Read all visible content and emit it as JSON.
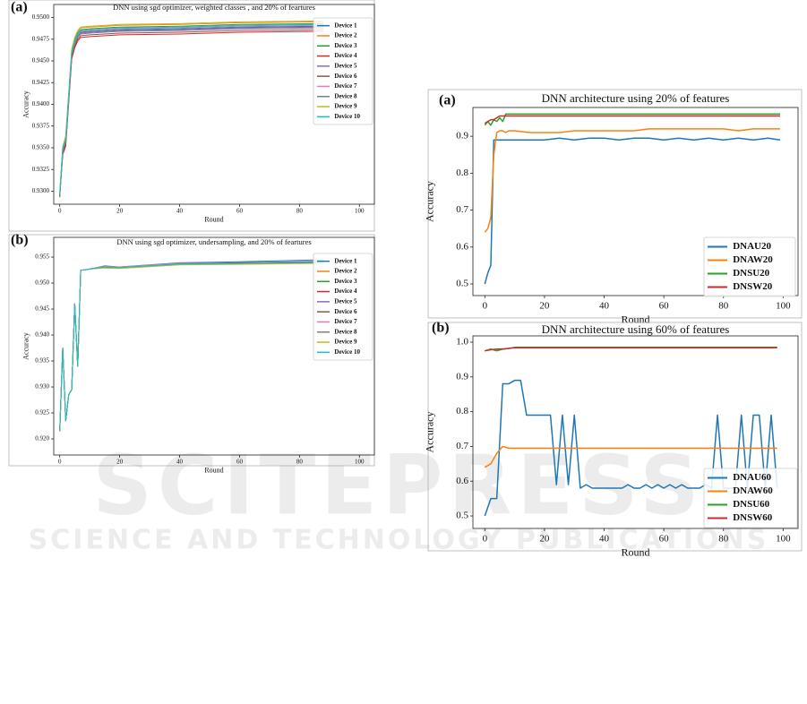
{
  "watermark": {
    "title": "SCITEPRESS",
    "subtitle": "SCIENCE AND TECHNOLOGY PUBLICATIONS"
  },
  "chart_data": [
    {
      "type": "line",
      "panel": "(a)",
      "title": "DNN using sgd optimizer, weighted classes , and 20% of feartures",
      "xlabel": "Round",
      "ylabel": "Accuracy",
      "x": [
        0,
        1,
        2,
        3,
        4,
        5,
        6,
        7,
        10,
        20,
        40,
        60,
        88
      ],
      "xlim": [
        -2,
        105
      ],
      "xticks": [
        0,
        20,
        40,
        60,
        80,
        100
      ],
      "ylim": [
        0.9285,
        0.9515
      ],
      "yticks": [
        {
          "value": 0.93,
          "label": "0.9300"
        },
        0.9325,
        {
          "value": 0.935,
          "label": "0.9350"
        },
        0.9375,
        {
          "value": 0.94,
          "label": "0.9400"
        },
        0.9425,
        {
          "value": 0.945,
          "label": "0.9450"
        },
        0.9475,
        {
          "value": 0.95,
          "label": "0.9500"
        }
      ],
      "legend": "upper right",
      "series": [
        {
          "name": "Device 1",
          "color": "#1f77b4",
          "values": [
            0.9298,
            0.9348,
            0.9358,
            0.9408,
            0.9458,
            0.9471,
            0.9479,
            0.9483,
            0.9484,
            0.9486,
            0.9487,
            0.9489,
            0.949
          ]
        },
        {
          "name": "Device 2",
          "color": "#ff7f0e",
          "values": [
            0.9296,
            0.935,
            0.9362,
            0.9412,
            0.9462,
            0.9476,
            0.9484,
            0.9488,
            0.9489,
            0.9491,
            0.9492,
            0.9494,
            0.9495
          ]
        },
        {
          "name": "Device 3",
          "color": "#2ca02c",
          "values": [
            0.9294,
            0.9344,
            0.936,
            0.941,
            0.946,
            0.9474,
            0.9482,
            0.9486,
            0.9487,
            0.9489,
            0.949,
            0.9492,
            0.9493
          ]
        },
        {
          "name": "Device 4",
          "color": "#d62728",
          "values": [
            0.9295,
            0.9342,
            0.9352,
            0.9402,
            0.9452,
            0.9465,
            0.9473,
            0.9477,
            0.9478,
            0.948,
            0.9481,
            0.9483,
            0.9484
          ]
        },
        {
          "name": "Device 5",
          "color": "#9467bd",
          "values": [
            0.9297,
            0.9346,
            0.9356,
            0.9406,
            0.9456,
            0.9469,
            0.9477,
            0.9481,
            0.9482,
            0.9484,
            0.9485,
            0.9487,
            0.9488
          ]
        },
        {
          "name": "Device 6",
          "color": "#8c564b",
          "values": [
            0.9293,
            0.9344,
            0.9354,
            0.9404,
            0.9454,
            0.9467,
            0.9475,
            0.9479,
            0.948,
            0.9482,
            0.9483,
            0.9485,
            0.9486
          ]
        },
        {
          "name": "Device 7",
          "color": "#e377c2",
          "values": [
            0.9296,
            0.9349,
            0.9359,
            0.9409,
            0.9459,
            0.9472,
            0.948,
            0.9484,
            0.9485,
            0.9487,
            0.9488,
            0.949,
            0.9491
          ]
        },
        {
          "name": "Device 8",
          "color": "#7f7f7f",
          "values": [
            0.9295,
            0.9347,
            0.9357,
            0.9407,
            0.9457,
            0.947,
            0.9478,
            0.9482,
            0.9483,
            0.9485,
            0.9486,
            0.9488,
            0.9489
          ]
        },
        {
          "name": "Device 9",
          "color": "#bcbd22",
          "values": [
            0.9297,
            0.9351,
            0.9364,
            0.9414,
            0.9464,
            0.9477,
            0.9485,
            0.9489,
            0.949,
            0.9492,
            0.9493,
            0.9495,
            0.9496
          ]
        },
        {
          "name": "Device 10",
          "color": "#17becf",
          "values": [
            0.9296,
            0.935,
            0.936,
            0.941,
            0.946,
            0.9473,
            0.9481,
            0.9485,
            0.9486,
            0.9488,
            0.9489,
            0.9491,
            0.9492
          ]
        }
      ]
    },
    {
      "type": "line",
      "panel": "(b)",
      "title": "DNN using sgd optimizer, undersampling, and 20% of feartures",
      "xlabel": "Round",
      "ylabel": "Accuracy",
      "x": [
        0,
        1,
        2,
        3,
        4,
        5,
        6,
        7,
        8,
        10,
        15,
        20,
        40,
        60,
        88
      ],
      "xlim": [
        -2,
        105
      ],
      "xticks": [
        0,
        20,
        40,
        60,
        80,
        100
      ],
      "ylim": [
        0.9169,
        0.9588
      ],
      "yticks": [
        {
          "value": 0.92,
          "label": "0.920"
        },
        0.925,
        {
          "value": 0.93,
          "label": "0.930"
        },
        0.935,
        {
          "value": 0.94,
          "label": "0.940"
        },
        0.945,
        {
          "value": 0.95,
          "label": "0.950"
        },
        0.955
      ],
      "legend": "upper right",
      "series": [
        {
          "name": "Device 1",
          "color": "#1f77b4",
          "values": [
            0.9215,
            0.9375,
            0.9235,
            0.9285,
            0.9295,
            0.946,
            0.934,
            0.9525,
            0.9525,
            0.9527,
            0.9533,
            0.9531,
            0.9539,
            0.9541,
            0.9545
          ]
        },
        {
          "name": "Device 2",
          "color": "#ff7f0e",
          "values": [
            0.9215,
            0.9375,
            0.9235,
            0.9285,
            0.9295,
            0.946,
            0.934,
            0.9525,
            0.9525,
            0.9527,
            0.9531,
            0.9529,
            0.9536,
            0.9537,
            0.9539
          ]
        },
        {
          "name": "Device 3",
          "color": "#2ca02c",
          "values": [
            0.9215,
            0.9375,
            0.9235,
            0.9285,
            0.9295,
            0.946,
            0.934,
            0.9525,
            0.9525,
            0.9527,
            0.9532,
            0.953,
            0.9537,
            0.9538,
            0.954
          ]
        },
        {
          "name": "Device 4",
          "color": "#d62728",
          "values": [
            0.9215,
            0.9375,
            0.9235,
            0.9285,
            0.9295,
            0.946,
            0.934,
            0.9525,
            0.9525,
            0.9527,
            0.953,
            0.9529,
            0.9536,
            0.9538,
            0.9541
          ]
        },
        {
          "name": "Device 5",
          "color": "#9467bd",
          "values": [
            0.9215,
            0.9375,
            0.9235,
            0.9285,
            0.9295,
            0.946,
            0.934,
            0.9525,
            0.9525,
            0.9527,
            0.9532,
            0.953,
            0.9538,
            0.9539,
            0.9542
          ]
        },
        {
          "name": "Device 6",
          "color": "#8c564b",
          "values": [
            0.9215,
            0.9375,
            0.9235,
            0.9285,
            0.9295,
            0.946,
            0.934,
            0.9525,
            0.9525,
            0.9527,
            0.9531,
            0.953,
            0.9537,
            0.9539,
            0.9541
          ]
        },
        {
          "name": "Device 7",
          "color": "#e377c2",
          "values": [
            0.9215,
            0.9375,
            0.9235,
            0.9285,
            0.9295,
            0.946,
            0.934,
            0.9525,
            0.9525,
            0.9527,
            0.9532,
            0.9531,
            0.9538,
            0.9538,
            0.954
          ]
        },
        {
          "name": "Device 8",
          "color": "#7f7f7f",
          "values": [
            0.9215,
            0.9375,
            0.9235,
            0.9285,
            0.9295,
            0.946,
            0.934,
            0.9525,
            0.9525,
            0.9527,
            0.953,
            0.9529,
            0.9536,
            0.9537,
            0.9539
          ]
        },
        {
          "name": "Device 9",
          "color": "#bcbd22",
          "values": [
            0.9215,
            0.9375,
            0.9235,
            0.9285,
            0.9295,
            0.946,
            0.934,
            0.9525,
            0.9525,
            0.9527,
            0.9529,
            0.9528,
            0.9535,
            0.9536,
            0.9538
          ]
        },
        {
          "name": "Device 10",
          "color": "#17becf",
          "values": [
            0.9215,
            0.9375,
            0.9235,
            0.9285,
            0.9295,
            0.946,
            0.934,
            0.9525,
            0.9525,
            0.9527,
            0.9531,
            0.953,
            0.9537,
            0.9538,
            0.954
          ]
        }
      ]
    },
    {
      "type": "line",
      "panel": "(a)",
      "title": "DNN architecture using 20% of features",
      "xlabel": "Round",
      "ylabel": "Accuracy",
      "x": [
        0,
        1,
        2,
        3,
        4,
        5,
        6,
        7,
        8,
        10,
        15,
        20,
        25,
        30,
        35,
        40,
        45,
        50,
        55,
        60,
        65,
        70,
        75,
        80,
        85,
        90,
        95,
        99
      ],
      "xlim": [
        -4,
        105
      ],
      "xticks": [
        0,
        20,
        40,
        60,
        80,
        100
      ],
      "ylim": [
        0.4685,
        0.978
      ],
      "yticks": [
        0.5,
        0.6,
        0.7,
        0.8,
        0.9
      ],
      "legend": "lower right",
      "series": [
        {
          "name": "DNAU20",
          "color": "#1f77b4",
          "values": [
            0.5,
            0.53,
            0.55,
            0.89,
            0.89,
            0.89,
            0.89,
            0.89,
            0.89,
            0.89,
            0.89,
            0.89,
            0.895,
            0.89,
            0.895,
            0.895,
            0.89,
            0.895,
            0.895,
            0.89,
            0.895,
            0.89,
            0.895,
            0.89,
            0.895,
            0.89,
            0.895,
            0.89
          ]
        },
        {
          "name": "DNAW20",
          "color": "#ff7f0e",
          "values": [
            0.64,
            0.65,
            0.68,
            0.85,
            0.91,
            0.915,
            0.915,
            0.91,
            0.915,
            0.915,
            0.91,
            0.91,
            0.91,
            0.915,
            0.915,
            0.915,
            0.915,
            0.915,
            0.92,
            0.92,
            0.92,
            0.92,
            0.92,
            0.92,
            0.915,
            0.92,
            0.92,
            0.92
          ]
        },
        {
          "name": "DNSU20",
          "color": "#2ca02c",
          "values": [
            0.93,
            0.94,
            0.93,
            0.945,
            0.94,
            0.95,
            0.94,
            0.96,
            0.96,
            0.96,
            0.96,
            0.96,
            0.96,
            0.96,
            0.96,
            0.96,
            0.96,
            0.96,
            0.96,
            0.96,
            0.96,
            0.96,
            0.96,
            0.96,
            0.96,
            0.96,
            0.96,
            0.96
          ]
        },
        {
          "name": "DNSW20",
          "color": "#d62728",
          "values": [
            0.935,
            0.94,
            0.945,
            0.945,
            0.95,
            0.955,
            0.955,
            0.955,
            0.955,
            0.955,
            0.955,
            0.955,
            0.955,
            0.955,
            0.955,
            0.955,
            0.955,
            0.955,
            0.955,
            0.955,
            0.955,
            0.955,
            0.955,
            0.955,
            0.955,
            0.955,
            0.955,
            0.955
          ]
        }
      ]
    },
    {
      "type": "line",
      "panel": "(b)",
      "title": "DNN architecture using 60% of features",
      "xlabel": "Round",
      "ylabel": "Accuracy",
      "x": [
        0,
        2,
        4,
        6,
        8,
        10,
        12,
        14,
        16,
        18,
        20,
        22,
        24,
        26,
        28,
        30,
        32,
        34,
        36,
        38,
        40,
        42,
        44,
        46,
        48,
        50,
        52,
        54,
        56,
        58,
        60,
        62,
        64,
        66,
        68,
        70,
        72,
        74,
        76,
        78,
        80,
        82,
        84,
        86,
        88,
        90,
        92,
        94,
        96,
        98
      ],
      "xlim": [
        -4,
        105
      ],
      "xticks": [
        0,
        20,
        40,
        60,
        80,
        100
      ],
      "ylim": [
        0.464,
        1.018
      ],
      "yticks": [
        0.5,
        0.6,
        0.7,
        0.8,
        0.9,
        {
          "value": 1,
          "label": "1.0"
        }
      ],
      "legend": "lower right",
      "series": [
        {
          "name": "DNAU60",
          "color": "#1f77b4",
          "values": [
            0.5,
            0.55,
            0.55,
            0.88,
            0.88,
            0.89,
            0.89,
            0.79,
            0.79,
            0.79,
            0.79,
            0.79,
            0.59,
            0.79,
            0.59,
            0.79,
            0.58,
            0.59,
            0.58,
            0.58,
            0.58,
            0.58,
            0.58,
            0.58,
            0.59,
            0.58,
            0.58,
            0.59,
            0.58,
            0.59,
            0.58,
            0.59,
            0.58,
            0.59,
            0.58,
            0.58,
            0.58,
            0.59,
            0.58,
            0.79,
            0.58,
            0.58,
            0.58,
            0.79,
            0.58,
            0.79,
            0.79,
            0.58,
            0.79,
            0.58
          ]
        },
        {
          "name": "DNAW60",
          "color": "#ff7f0e",
          "values": [
            0.64,
            0.65,
            0.68,
            0.7,
            0.695,
            0.695,
            0.695,
            0.695,
            0.695,
            0.695,
            0.695,
            0.695,
            0.695,
            0.695,
            0.695,
            0.695,
            0.695,
            0.695,
            0.695,
            0.695,
            0.695,
            0.695,
            0.695,
            0.695,
            0.695,
            0.695,
            0.695,
            0.695,
            0.695,
            0.695,
            0.695,
            0.695,
            0.695,
            0.695,
            0.695,
            0.695,
            0.695,
            0.695,
            0.695,
            0.695,
            0.695,
            0.695,
            0.695,
            0.695,
            0.695,
            0.695,
            0.695,
            0.695,
            0.695,
            0.695
          ]
        },
        {
          "name": "DNSU60",
          "color": "#2ca02c",
          "values": [
            0.975,
            0.98,
            0.975,
            0.98,
            0.982,
            0.985,
            0.985,
            0.985,
            0.985,
            0.985,
            0.985,
            0.985,
            0.985,
            0.985,
            0.985,
            0.985,
            0.985,
            0.985,
            0.985,
            0.985,
            0.985,
            0.985,
            0.985,
            0.985,
            0.985,
            0.985,
            0.985,
            0.985,
            0.985,
            0.985,
            0.985,
            0.985,
            0.985,
            0.985,
            0.985,
            0.985,
            0.985,
            0.985,
            0.985,
            0.985,
            0.985,
            0.985,
            0.985,
            0.985,
            0.985,
            0.985,
            0.985,
            0.985,
            0.985,
            0.985
          ]
        },
        {
          "name": "DNSW60",
          "color": "#d62728",
          "values": [
            0.975,
            0.978,
            0.98,
            0.98,
            0.982,
            0.984,
            0.984,
            0.984,
            0.984,
            0.984,
            0.984,
            0.984,
            0.984,
            0.984,
            0.984,
            0.984,
            0.984,
            0.984,
            0.984,
            0.984,
            0.984,
            0.984,
            0.984,
            0.984,
            0.984,
            0.984,
            0.984,
            0.984,
            0.984,
            0.984,
            0.984,
            0.984,
            0.984,
            0.984,
            0.984,
            0.984,
            0.984,
            0.984,
            0.984,
            0.984,
            0.984,
            0.984,
            0.984,
            0.984,
            0.984,
            0.984,
            0.984,
            0.984,
            0.984,
            0.984
          ]
        }
      ]
    }
  ]
}
